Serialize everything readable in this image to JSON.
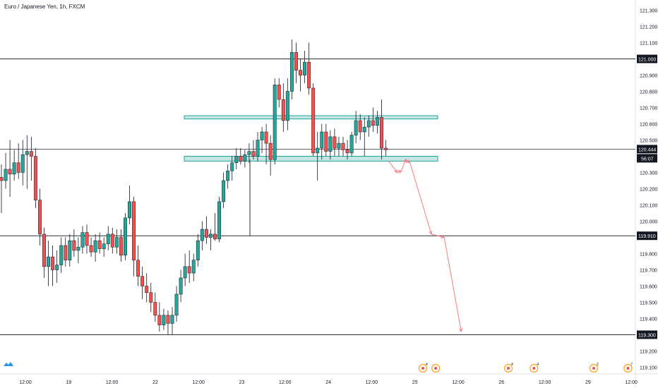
{
  "header": {
    "symbol_title": "Euro / Japanese Yen, 1h, FXCM"
  },
  "chart_data": {
    "type": "candlestick",
    "title": "Euro / Japanese Yen, 1h, FXCM",
    "ylim": [
      119.03,
      121.35
    ],
    "y_ticks": [
      119.1,
      119.2,
      119.3,
      119.4,
      119.5,
      119.6,
      119.7,
      119.8,
      119.9,
      120.0,
      120.1,
      120.2,
      120.3,
      120.4,
      120.5,
      120.6,
      120.7,
      120.8,
      120.9,
      121.0,
      121.1,
      121.2,
      121.3
    ],
    "y_tick_labels": [
      "119.100",
      "119.200",
      "119.300",
      "119.400",
      "119.500",
      "119.600",
      "119.700",
      "119.800",
      "119.900",
      "120.000",
      "120.100",
      "120.200",
      "120.300",
      "120.400",
      "120.500",
      "120.600",
      "120.700",
      "120.800",
      "120.900",
      "121.000",
      "121.100",
      "121.200",
      "121.300"
    ],
    "x_tick_labels": [
      "12:00",
      "19",
      "12:00",
      "22",
      "12:00",
      "23",
      "12:00",
      "24",
      "12:00",
      "25",
      "12:00",
      "26",
      "12:00",
      "29",
      "12:00"
    ],
    "bull_color": "#26a69a",
    "bear_color": "#ef5350",
    "candles": [
      {
        "o": 120.27,
        "h": 120.35,
        "l": 120.05,
        "c": 120.25
      },
      {
        "o": 120.25,
        "h": 120.42,
        "l": 120.2,
        "c": 120.32
      },
      {
        "o": 120.32,
        "h": 120.5,
        "l": 120.15,
        "c": 120.29
      },
      {
        "o": 120.29,
        "h": 120.44,
        "l": 120.25,
        "c": 120.36
      },
      {
        "o": 120.36,
        "h": 120.48,
        "l": 120.26,
        "c": 120.3
      },
      {
        "o": 120.3,
        "h": 120.5,
        "l": 120.22,
        "c": 120.41
      },
      {
        "o": 120.41,
        "h": 120.53,
        "l": 120.2,
        "c": 120.43
      },
      {
        "o": 120.43,
        "h": 120.52,
        "l": 120.25,
        "c": 120.4
      },
      {
        "o": 120.4,
        "h": 120.45,
        "l": 120.08,
        "c": 120.13
      },
      {
        "o": 120.13,
        "h": 120.2,
        "l": 119.85,
        "c": 119.92
      },
      {
        "o": 119.92,
        "h": 119.96,
        "l": 119.65,
        "c": 119.72
      },
      {
        "o": 119.72,
        "h": 119.88,
        "l": 119.6,
        "c": 119.78
      },
      {
        "o": 119.78,
        "h": 119.85,
        "l": 119.6,
        "c": 119.7
      },
      {
        "o": 119.7,
        "h": 119.82,
        "l": 119.62,
        "c": 119.73
      },
      {
        "o": 119.73,
        "h": 119.9,
        "l": 119.68,
        "c": 119.85
      },
      {
        "o": 119.85,
        "h": 119.9,
        "l": 119.72,
        "c": 119.76
      },
      {
        "o": 119.76,
        "h": 119.92,
        "l": 119.72,
        "c": 119.88
      },
      {
        "o": 119.88,
        "h": 119.95,
        "l": 119.78,
        "c": 119.82
      },
      {
        "o": 119.82,
        "h": 119.9,
        "l": 119.74,
        "c": 119.84
      },
      {
        "o": 119.84,
        "h": 119.97,
        "l": 119.8,
        "c": 119.93
      },
      {
        "o": 119.93,
        "h": 119.98,
        "l": 119.8,
        "c": 119.85
      },
      {
        "o": 119.85,
        "h": 119.9,
        "l": 119.78,
        "c": 119.81
      },
      {
        "o": 119.81,
        "h": 119.92,
        "l": 119.75,
        "c": 119.88
      },
      {
        "o": 119.88,
        "h": 119.93,
        "l": 119.8,
        "c": 119.83
      },
      {
        "o": 119.83,
        "h": 119.9,
        "l": 119.78,
        "c": 119.86
      },
      {
        "o": 119.86,
        "h": 119.97,
        "l": 119.82,
        "c": 119.92
      },
      {
        "o": 119.92,
        "h": 119.96,
        "l": 119.8,
        "c": 119.84
      },
      {
        "o": 119.84,
        "h": 119.95,
        "l": 119.8,
        "c": 119.9
      },
      {
        "o": 119.9,
        "h": 119.95,
        "l": 119.75,
        "c": 119.79
      },
      {
        "o": 119.79,
        "h": 120.05,
        "l": 119.76,
        "c": 120.02
      },
      {
        "o": 120.02,
        "h": 120.22,
        "l": 119.98,
        "c": 120.12
      },
      {
        "o": 120.12,
        "h": 120.15,
        "l": 119.66,
        "c": 119.76
      },
      {
        "o": 119.76,
        "h": 119.85,
        "l": 119.6,
        "c": 119.66
      },
      {
        "o": 119.66,
        "h": 119.72,
        "l": 119.52,
        "c": 119.6
      },
      {
        "o": 119.6,
        "h": 119.68,
        "l": 119.5,
        "c": 119.56
      },
      {
        "o": 119.56,
        "h": 119.62,
        "l": 119.44,
        "c": 119.5
      },
      {
        "o": 119.5,
        "h": 119.56,
        "l": 119.38,
        "c": 119.42
      },
      {
        "o": 119.42,
        "h": 119.5,
        "l": 119.32,
        "c": 119.36
      },
      {
        "o": 119.36,
        "h": 119.46,
        "l": 119.33,
        "c": 119.42
      },
      {
        "o": 119.42,
        "h": 119.45,
        "l": 119.3,
        "c": 119.37
      },
      {
        "o": 119.37,
        "h": 119.47,
        "l": 119.3,
        "c": 119.42
      },
      {
        "o": 119.42,
        "h": 119.6,
        "l": 119.38,
        "c": 119.55
      },
      {
        "o": 119.55,
        "h": 119.7,
        "l": 119.5,
        "c": 119.65
      },
      {
        "o": 119.65,
        "h": 119.8,
        "l": 119.6,
        "c": 119.72
      },
      {
        "o": 119.72,
        "h": 119.82,
        "l": 119.62,
        "c": 119.68
      },
      {
        "o": 119.68,
        "h": 119.8,
        "l": 119.63,
        "c": 119.76
      },
      {
        "o": 119.76,
        "h": 119.92,
        "l": 119.72,
        "c": 119.88
      },
      {
        "o": 119.88,
        "h": 120.0,
        "l": 119.82,
        "c": 119.95
      },
      {
        "o": 119.95,
        "h": 120.03,
        "l": 119.86,
        "c": 119.9
      },
      {
        "o": 119.9,
        "h": 119.95,
        "l": 119.82,
        "c": 119.92
      },
      {
        "o": 119.92,
        "h": 120.05,
        "l": 119.88,
        "c": 119.89
      },
      {
        "o": 119.89,
        "h": 120.15,
        "l": 119.87,
        "c": 120.12
      },
      {
        "o": 120.12,
        "h": 120.3,
        "l": 120.08,
        "c": 120.25
      },
      {
        "o": 120.25,
        "h": 120.35,
        "l": 120.2,
        "c": 120.31
      },
      {
        "o": 120.31,
        "h": 120.4,
        "l": 120.25,
        "c": 120.36
      },
      {
        "o": 120.36,
        "h": 120.45,
        "l": 120.32,
        "c": 120.4
      },
      {
        "o": 120.4,
        "h": 120.45,
        "l": 120.35,
        "c": 120.37
      },
      {
        "o": 120.37,
        "h": 120.44,
        "l": 120.33,
        "c": 120.41
      },
      {
        "o": 120.41,
        "h": 120.48,
        "l": 120.36,
        "c": 120.43
      },
      {
        "o": 120.43,
        "h": 120.5,
        "l": 120.38,
        "c": 120.4
      },
      {
        "o": 120.4,
        "h": 120.55,
        "l": 120.37,
        "c": 120.5
      },
      {
        "o": 120.5,
        "h": 120.58,
        "l": 120.42,
        "c": 120.55
      },
      {
        "o": 120.55,
        "h": 120.6,
        "l": 120.35,
        "c": 120.48
      },
      {
        "o": 120.48,
        "h": 120.53,
        "l": 120.28,
        "c": 120.38
      },
      {
        "o": 120.38,
        "h": 120.88,
        "l": 120.35,
        "c": 120.84
      },
      {
        "o": 120.84,
        "h": 120.88,
        "l": 120.7,
        "c": 120.75
      },
      {
        "o": 120.75,
        "h": 120.85,
        "l": 120.55,
        "c": 120.62
      },
      {
        "o": 120.62,
        "h": 120.88,
        "l": 120.56,
        "c": 120.8
      },
      {
        "o": 120.8,
        "h": 121.12,
        "l": 120.75,
        "c": 121.04
      },
      {
        "o": 121.04,
        "h": 121.1,
        "l": 120.85,
        "c": 120.93
      },
      {
        "o": 120.93,
        "h": 121.0,
        "l": 120.8,
        "c": 120.9
      },
      {
        "o": 120.9,
        "h": 121.05,
        "l": 120.85,
        "c": 120.98
      },
      {
        "o": 120.98,
        "h": 121.1,
        "l": 120.78,
        "c": 120.82
      },
      {
        "o": 120.82,
        "h": 120.85,
        "l": 120.4,
        "c": 120.42
      },
      {
        "o": 120.42,
        "h": 120.55,
        "l": 120.25,
        "c": 120.45
      },
      {
        "o": 120.45,
        "h": 120.6,
        "l": 120.38,
        "c": 120.55
      },
      {
        "o": 120.55,
        "h": 120.6,
        "l": 120.4,
        "c": 120.43
      },
      {
        "o": 120.43,
        "h": 120.56,
        "l": 120.38,
        "c": 120.52
      },
      {
        "o": 120.52,
        "h": 120.57,
        "l": 120.4,
        "c": 120.45
      },
      {
        "o": 120.45,
        "h": 120.52,
        "l": 120.4,
        "c": 120.48
      },
      {
        "o": 120.48,
        "h": 120.52,
        "l": 120.4,
        "c": 120.44
      },
      {
        "o": 120.44,
        "h": 120.5,
        "l": 120.38,
        "c": 120.42
      },
      {
        "o": 120.42,
        "h": 120.55,
        "l": 120.4,
        "c": 120.53
      },
      {
        "o": 120.53,
        "h": 120.68,
        "l": 120.48,
        "c": 120.62
      },
      {
        "o": 120.62,
        "h": 120.66,
        "l": 120.5,
        "c": 120.55
      },
      {
        "o": 120.55,
        "h": 120.64,
        "l": 120.4,
        "c": 120.58
      },
      {
        "o": 120.58,
        "h": 120.65,
        "l": 120.52,
        "c": 120.62
      },
      {
        "o": 120.62,
        "h": 120.7,
        "l": 120.55,
        "c": 120.59
      },
      {
        "o": 120.59,
        "h": 120.68,
        "l": 120.54,
        "c": 120.64
      },
      {
        "o": 120.64,
        "h": 120.75,
        "l": 120.38,
        "c": 120.45
      },
      {
        "o": 120.45,
        "h": 120.5,
        "l": 120.4,
        "c": 120.44
      }
    ],
    "horizontal_lines": [
      {
        "price": 121.0,
        "label": "121.000",
        "color": "#2a2e39"
      },
      {
        "price": 120.444,
        "label": "120.444",
        "color": "#2a2e39"
      },
      {
        "price": 119.91,
        "label": "119.910",
        "color": "#2a2e39"
      },
      {
        "price": 119.3,
        "label": "119.300",
        "color": "#2a2e39"
      }
    ],
    "countdown_label": "56:07",
    "zones": [
      {
        "top": 120.65,
        "bottom": 120.63,
        "color": "#26a69a"
      },
      {
        "top": 120.4,
        "bottom": 120.37,
        "color": "#26a69a"
      }
    ],
    "projection_path": [
      [
        90,
        120.37
      ],
      [
        92,
        120.3
      ],
      [
        93,
        120.31
      ],
      [
        94,
        120.38
      ],
      [
        95,
        120.36
      ],
      [
        100,
        119.92
      ],
      [
        103,
        119.9
      ],
      [
        107,
        119.32
      ]
    ],
    "projection_color": "#f77c80",
    "event_markers": [
      {
        "x_index": 100,
        "label": "4"
      },
      {
        "x_index": 103,
        "label": ""
      },
      {
        "x_index": 120,
        "label": "4"
      },
      {
        "x_index": 126,
        "label": "4"
      },
      {
        "x_index": 140,
        "label": "2"
      },
      {
        "x_index": 148,
        "label": "7"
      }
    ],
    "grid": false
  }
}
